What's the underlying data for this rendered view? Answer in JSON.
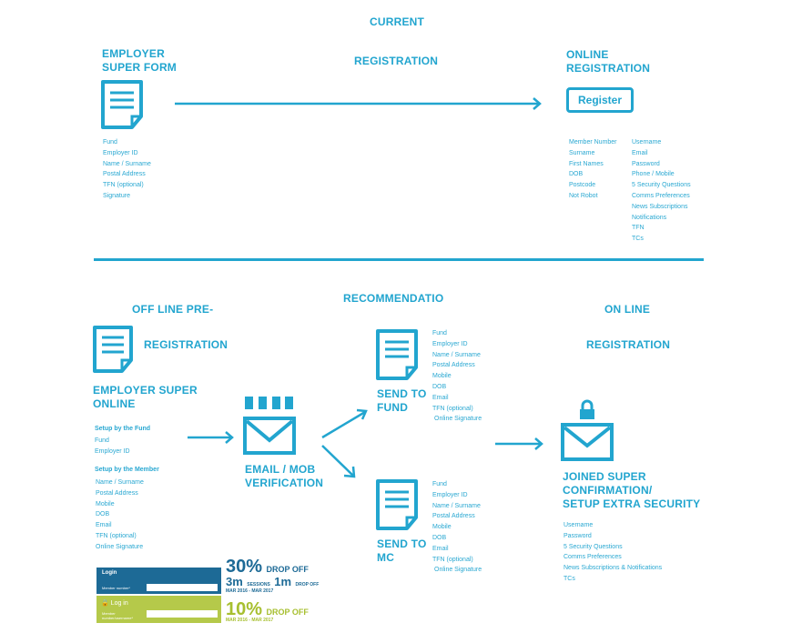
{
  "colors": {
    "primary": "#22a5cf",
    "login_blue": "#1d6a96",
    "login_green": "#b5c94a",
    "stat_blue": "#1d6a96",
    "stat_green": "#a7bf2f"
  },
  "current": {
    "title": "CURRENT",
    "employer": {
      "label1": "EMPLOYER",
      "label2": "SUPER FORM",
      "icon": "document-icon",
      "fields": [
        "Fund",
        "Employer ID",
        "Name / Surname",
        "Postal Address",
        "TFN (optional)",
        "Signature"
      ]
    },
    "arrow_label": "REGISTRATION",
    "online": {
      "label1": "ONLINE",
      "label2": "REGISTRATION",
      "button": "Register",
      "fields_left": [
        "Member Number",
        "Surname",
        "First Names",
        "DOB",
        "Postcode",
        "Not Robot"
      ],
      "fields_right": [
        "Username",
        "Email",
        "Password",
        "Phone / Mobile",
        "5 Security Questions",
        "Comms Preferences",
        "News Subscriptions",
        "Notifications",
        "TFN",
        "TCs"
      ]
    }
  },
  "recommendation": {
    "title": "RECOMMENDATIO",
    "offline": {
      "label": "OFF LINE PRE-",
      "label2": "REGISTRATION",
      "employer1": "EMPLOYER SUPER",
      "employer2": "ONLINE",
      "setup_fund": "Setup by the Fund",
      "fund_fields": [
        "Fund",
        "Employer ID"
      ],
      "setup_member": "Setup by the Member",
      "member_fields": [
        "Name / Surname",
        "Postal Address",
        "Mobile",
        "DOB",
        "Email",
        "TFN (optional)",
        "Online Signature"
      ]
    },
    "verify": {
      "label1": "EMAIL / MOB",
      "label2": "VERIFICATION",
      "icon": "envelope-icon"
    },
    "send_fund": {
      "label1": "SEND TO",
      "label2": "FUND",
      "fields": [
        "Fund",
        "Employer ID",
        "Name / Surname",
        "Postal Address",
        "Mobile",
        "DOB",
        "Email",
        "TFN (optional)",
        "Online Signature"
      ]
    },
    "send_mc": {
      "label1": "SEND TO",
      "label2": "MC",
      "fields": [
        "Fund",
        "Employer ID",
        "Name / Surname",
        "Postal Address",
        "Mobile",
        "DOB",
        "Email",
        "TFN (optional)",
        "Online Signature"
      ]
    },
    "online": {
      "label1": "ON LINE",
      "label2": "REGISTRATION",
      "joined1": "JOINED SUPER",
      "joined2": "CONFIRMATION/",
      "joined3": "SETUP EXTRA SECURITY",
      "fields": [
        "Username",
        "Password",
        "5 Security Questions",
        "Comms Preferences",
        "News Subscriptions & Notifications",
        "TCs"
      ]
    },
    "stats": {
      "login1": "Login",
      "member_number": "Member number*",
      "login2": "Log in",
      "member2": "Member",
      "member2b": "number/username*",
      "pct1": "30%",
      "drop1": "DROP OFF",
      "sessions_big": "3m",
      "sessions": "SESSIONS",
      "m1": "1m",
      "drop1b": "DROP OFF",
      "date1": "MAR 2016 - MAR 2017",
      "pct2": "10%",
      "drop2": "DROP OFF",
      "date2": "MAR 2016 - MAR 2017"
    }
  }
}
